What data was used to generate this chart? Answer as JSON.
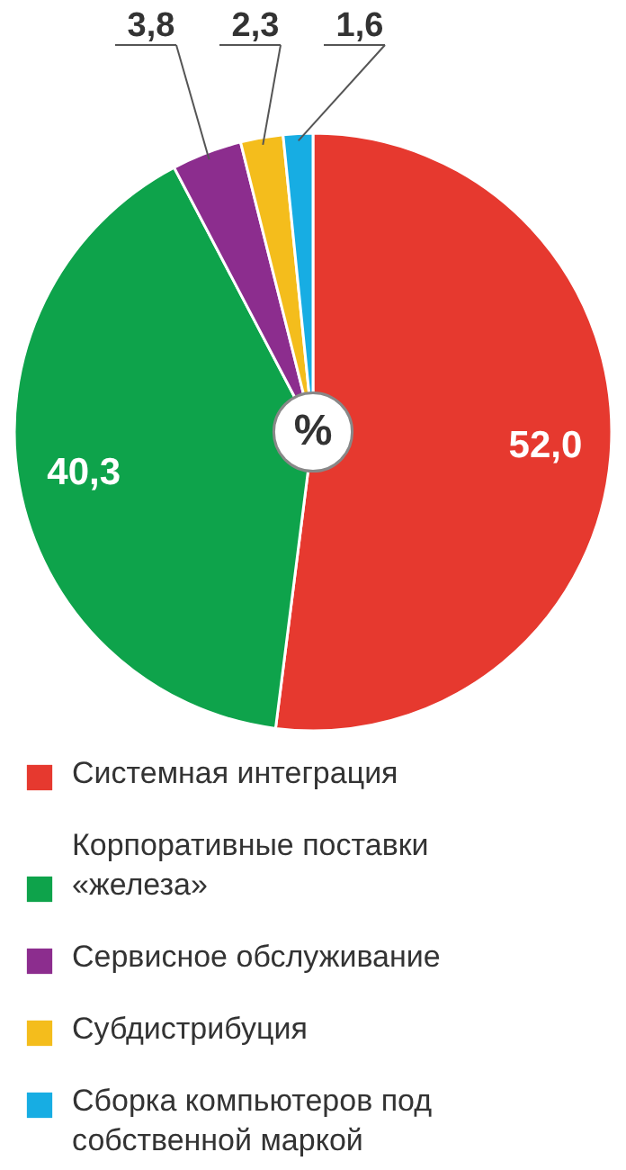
{
  "chart_data": {
    "type": "pie",
    "categories": [
      "Системная интеграция",
      "Корпоративные поставки «железа»",
      "Сервисное обслуживание",
      "Субдистрибуция",
      "Сборка компьютеров под собственной маркой"
    ],
    "values": [
      52.0,
      40.3,
      3.8,
      2.3,
      1.6
    ],
    "value_labels": [
      "52,0",
      "40,3",
      "3,8",
      "2,3",
      "1,6"
    ],
    "colors": [
      "#e6392f",
      "#0ea34b",
      "#8c2d8e",
      "#f4bd1c",
      "#17ade3"
    ],
    "annotations": [
      "%"
    ],
    "legend": "bottom"
  }
}
